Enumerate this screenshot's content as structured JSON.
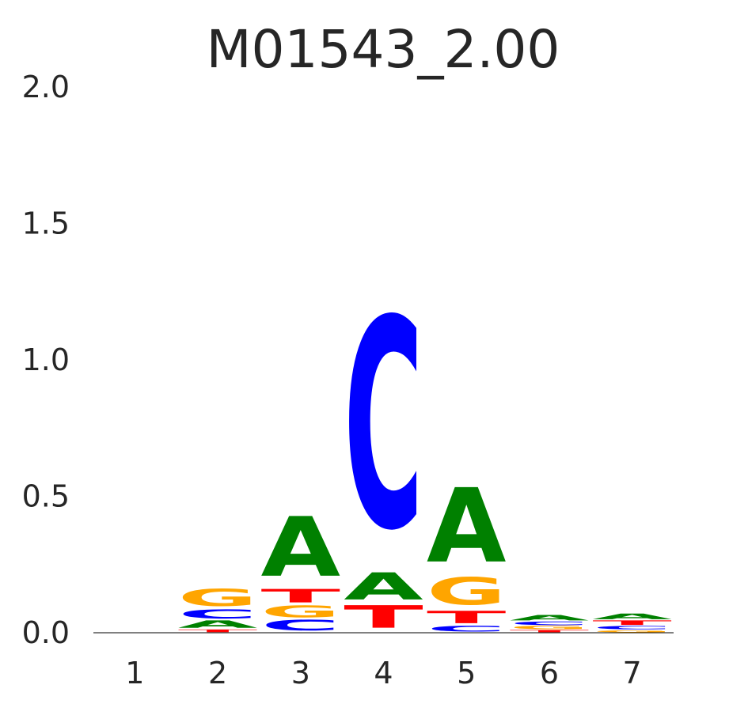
{
  "chart_data": {
    "type": "sequence-logo",
    "title": "M01543_2.00",
    "ylim": [
      0,
      2.0
    ],
    "y_ticks": [
      "0.0",
      "0.5",
      "1.0",
      "1.5",
      "2.0"
    ],
    "y_tick_values": [
      0.0,
      0.5,
      1.0,
      1.5,
      2.0
    ],
    "positions": [
      "1",
      "2",
      "3",
      "4",
      "5",
      "6",
      "7"
    ],
    "colors": {
      "A": "#008000",
      "C": "#0000ff",
      "G": "#ffa500",
      "T": "#ff0000"
    },
    "stacks": [
      [],
      [
        {
          "letter": "T",
          "height": 0.012
        },
        {
          "letter": "A",
          "height": 0.033
        },
        {
          "letter": "C",
          "height": 0.04
        },
        {
          "letter": "G",
          "height": 0.075
        }
      ],
      [
        {
          "letter": "C",
          "height": 0.047
        },
        {
          "letter": "G",
          "height": 0.053
        },
        {
          "letter": "T",
          "height": 0.06
        },
        {
          "letter": "A",
          "height": 0.265
        }
      ],
      [
        {
          "letter": "T",
          "height": 0.1
        },
        {
          "letter": "A",
          "height": 0.12
        },
        {
          "letter": "C",
          "height": 0.93
        }
      ],
      [
        {
          "letter": "C",
          "height": 0.025
        },
        {
          "letter": "T",
          "height": 0.055
        },
        {
          "letter": "G",
          "height": 0.12
        },
        {
          "letter": "A",
          "height": 0.33
        }
      ],
      [
        {
          "letter": "T",
          "height": 0.01
        },
        {
          "letter": "G",
          "height": 0.015
        },
        {
          "letter": "C",
          "height": 0.016
        },
        {
          "letter": "A",
          "height": 0.024
        }
      ],
      [
        {
          "letter": "G",
          "height": 0.01
        },
        {
          "letter": "C",
          "height": 0.015
        },
        {
          "letter": "T",
          "height": 0.02
        },
        {
          "letter": "A",
          "height": 0.025
        }
      ]
    ]
  }
}
